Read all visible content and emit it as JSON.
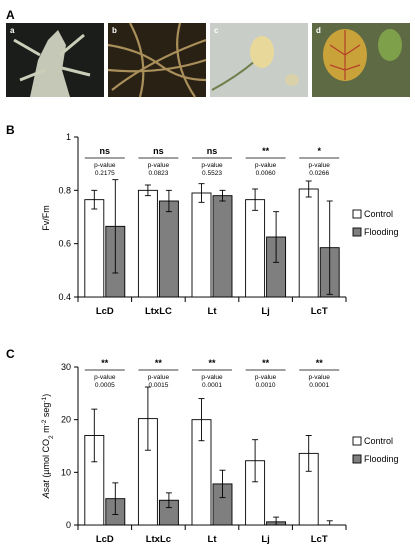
{
  "figure": {
    "panel_a_label": "A",
    "panel_b_label": "B",
    "panel_c_label": "C",
    "photos": [
      {
        "label": "a",
        "subject": "root-crown-photo"
      },
      {
        "label": "b",
        "subject": "roots-photo"
      },
      {
        "label": "c",
        "subject": "yellow-flower-photo"
      },
      {
        "label": "d",
        "subject": "yellow-leaf-photo"
      }
    ],
    "pvalue_word": "p-value"
  },
  "colors": {
    "control": "#ffffff",
    "flooding": "#7f7f7f",
    "stroke": "#000000",
    "photo_a": "#1a1d1a",
    "photo_b": "#a98f5a",
    "photo_c": "#c8cdc8",
    "photo_d": "#5e6a44"
  },
  "chart_data": [
    {
      "type": "bar",
      "ylabel": "Fv/Fm",
      "ylim": [
        0.4,
        1.0
      ],
      "yticks": [
        "0.4",
        "0.6",
        "0.8",
        "1"
      ],
      "categories": [
        "LcD",
        "LtxLC",
        "Lt",
        "Lj",
        "LcT"
      ],
      "series": [
        {
          "name": "Control",
          "values": [
            0.765,
            0.8,
            0.79,
            0.765,
            0.805
          ],
          "errors": [
            0.035,
            0.02,
            0.035,
            0.04,
            0.03
          ]
        },
        {
          "name": "Flooding",
          "values": [
            0.665,
            0.76,
            0.78,
            0.625,
            0.585
          ],
          "errors": [
            0.175,
            0.04,
            0.02,
            0.095,
            0.175
          ]
        }
      ],
      "significance": [
        "ns",
        "ns",
        "ns",
        "**",
        "*"
      ],
      "pvalues": [
        "0.2175",
        "0.0823",
        "0.5523",
        "0.0060",
        "0.0266"
      ],
      "legend": "right",
      "grid": false
    },
    {
      "type": "bar",
      "ylabel_italic": "Asat",
      "ylabel_rest": " (µmol CO",
      "ylabel_sub": "2",
      "ylabel_m": " m",
      "ylabel_sup1": "-2",
      "ylabel_seg": " seg",
      "ylabel_sup2": "-1",
      "ylabel_close": ")",
      "ylim": [
        0,
        30
      ],
      "yticks": [
        "0",
        "10",
        "20",
        "30"
      ],
      "categories": [
        "LcD",
        "LtxLc",
        "Lt",
        "Lj",
        "LcT"
      ],
      "series": [
        {
          "name": "Control",
          "values": [
            17.0,
            20.2,
            20.0,
            12.2,
            13.6
          ],
          "errors": [
            5.0,
            6.0,
            4.0,
            4.0,
            3.4
          ]
        },
        {
          "name": "Flooding",
          "values": [
            5.0,
            4.7,
            7.8,
            0.6,
            0.0
          ],
          "errors": [
            3.0,
            1.4,
            2.6,
            0.9,
            0.8
          ]
        }
      ],
      "significance": [
        "**",
        "**",
        "**",
        "**",
        "**"
      ],
      "pvalues": [
        "0.0005",
        "0.0015",
        "0.0001",
        "0.0010",
        "0.0001"
      ],
      "legend": "right",
      "grid": false
    }
  ]
}
